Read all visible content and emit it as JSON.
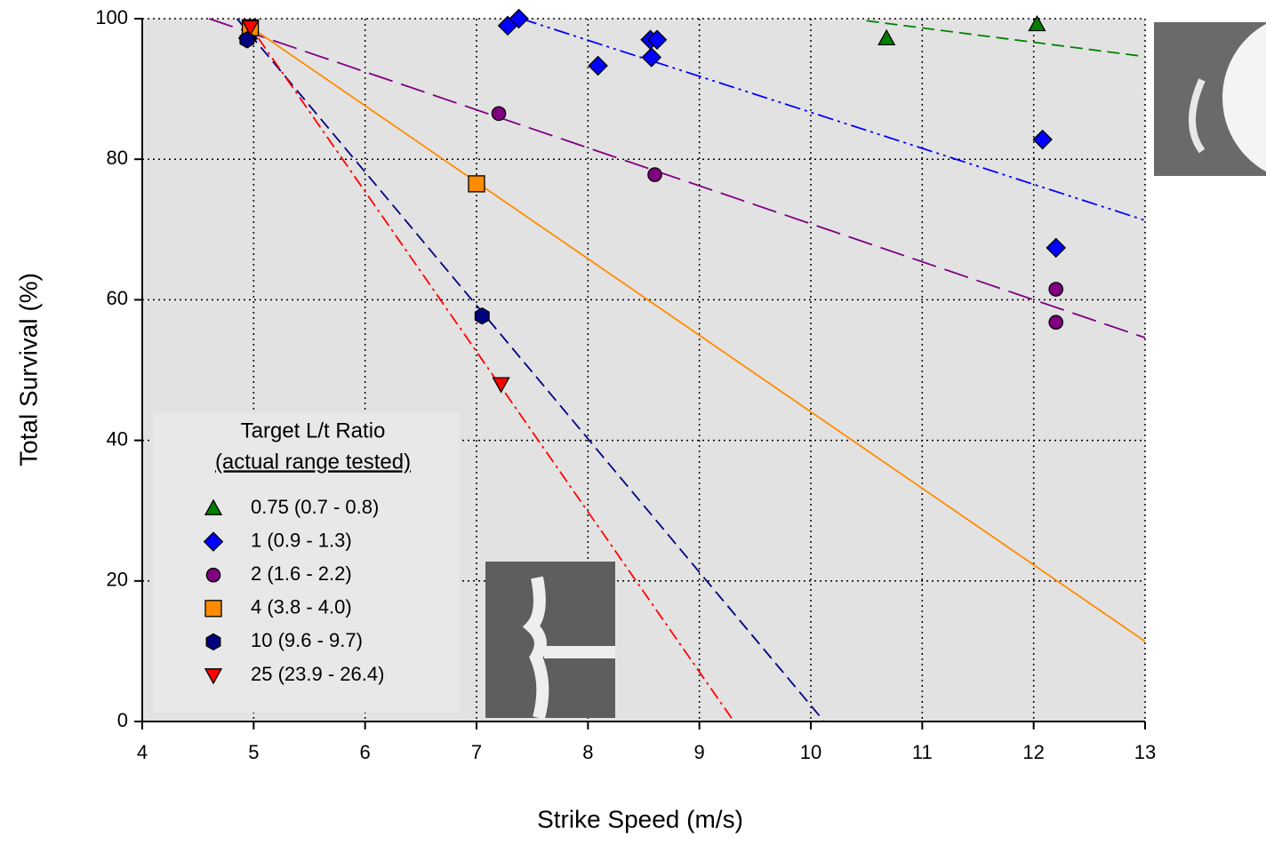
{
  "chart_data": {
    "type": "scatter",
    "xlabel": "Strike Speed (m/s)",
    "ylabel": "Total Survival (%)",
    "xlim": [
      4,
      13
    ],
    "ylim": [
      0,
      100
    ],
    "xticks": [
      4,
      5,
      6,
      7,
      8,
      9,
      10,
      11,
      12,
      13
    ],
    "yticks": [
      0,
      20,
      40,
      60,
      80,
      100
    ],
    "grid": true,
    "legend_title": [
      "Target L/t Ratio",
      "(actual range tested)"
    ],
    "legend": "lower left",
    "series": [
      {
        "name": "0.75 (0.7 - 0.8)",
        "color": "#008000",
        "marker": "triangle",
        "line": "dash",
        "x": [
          10.68,
          12.03
        ],
        "values": [
          97.2,
          99.2
        ],
        "trend_x": [
          10.5,
          13
        ],
        "trend_y": [
          99.7,
          94.6
        ]
      },
      {
        "name": "1 (0.9 - 1.3)",
        "color": "#0000ff",
        "marker": "diamond",
        "line": "dashdotdot",
        "x": [
          4.95,
          7.28,
          7.38,
          8.09,
          8.56,
          8.62,
          8.57,
          12.08,
          12.2
        ],
        "values": [
          97.2,
          99,
          100,
          93.3,
          97,
          97,
          94.5,
          82.8,
          67.4
        ],
        "trend_x": [
          7.4,
          13
        ],
        "trend_y": [
          100,
          71.3
        ]
      },
      {
        "name": "2 (1.6 - 2.2)",
        "color": "#800080",
        "marker": "circle",
        "line": "longdash",
        "x": [
          4.95,
          7.2,
          8.6,
          12.2,
          12.2
        ],
        "values": [
          97.4,
          86.5,
          77.8,
          61.5,
          56.8
        ],
        "trend_x": [
          4.6,
          13
        ],
        "trend_y": [
          100,
          54.6
        ]
      },
      {
        "name": "4 (3.8 - 4.0)",
        "color": "#ff8c00",
        "marker": "square",
        "line": "solid",
        "x": [
          4.97,
          7.0
        ],
        "values": [
          98.7,
          76.5
        ],
        "trend_x": [
          5,
          13
        ],
        "trend_y": [
          98.5,
          11.4
        ]
      },
      {
        "name": "10 (9.6 - 9.7)",
        "color": "#000080",
        "marker": "hexagon",
        "line": "dash",
        "x": [
          4.94,
          7.05
        ],
        "values": [
          97,
          57.7
        ],
        "trend_x": [
          4.85,
          10.12
        ],
        "trend_y": [
          100,
          0
        ]
      },
      {
        "name": "25 (23.9 - 26.4)",
        "color": "#ff0000",
        "marker": "triangle-down",
        "line": "dashdot",
        "x": [
          4.97,
          7.22
        ],
        "values": [
          98.8,
          48
        ],
        "trend_x": [
          4.92,
          9.31
        ],
        "trend_y": [
          100,
          0
        ]
      }
    ]
  }
}
